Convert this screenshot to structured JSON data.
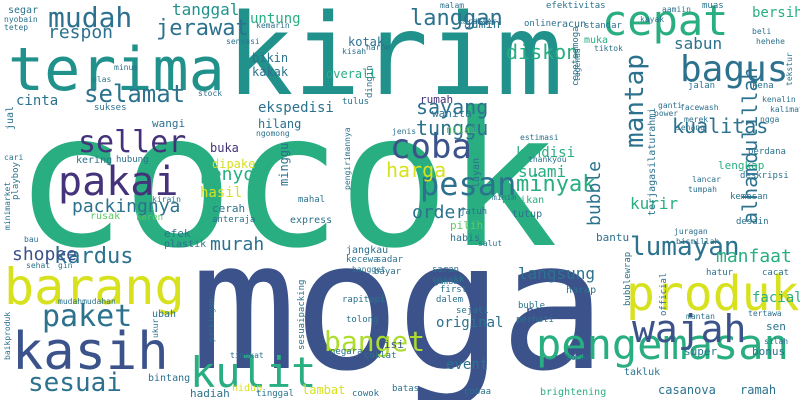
{
  "words": {
    "cocok": "cocok",
    "moga": "moga",
    "kirim": "kirim",
    "terima": "terima",
    "barang": "barang",
    "kasih": "kasih",
    "pengemasan": "pengemasan",
    "produk": "produk",
    "cepat": "cepat",
    "kulit": "kulit",
    "wajah": "wajah",
    "pakai": "pakai",
    "bagus": "bagus",
    "mudah": "mudah",
    "seller": "seller",
    "coba": "coba",
    "pesan": "pesan",
    "paket": "paket",
    "sesuai": "sesuai",
    "banget": "banget",
    "selamat": "selamat",
    "lumayan": "lumayan",
    "jerawat": "jerawat",
    "langgan": "langgan",
    "respon": "respon",
    "harga": "harga",
    "mantap": "mantap",
    "alhamdulillah": "alhamdulillah",
    "diskon": "diskon",
    "tanggal": "tanggal",
    "sayang": "sayang",
    "tunggu": "tunggu",
    "minyak": "minyak",
    "kualitas": "kualitas",
    "kardus": "kardus",
    "manfaat": "manfaat",
    "penyok": "penyok",
    "packingnya": "packingnya",
    "order": "order",
    "murah": "murah",
    "shopee": "shopee",
    "langsung": "langsung",
    "bubble": "bubble",
    "suami": "suami",
    "cinta": "cinta",
    "sabun": "sabun",
    "bersih": "bersih",
    "facial": "facial",
    "kondisi": "kondisi",
    "ekspedisi": "ekspedisi",
    "hasil": "hasil",
    "promo": "promo",
    "original": "original",
    "event": "event",
    "kurir": "kurir",
    "untung": "untung",
    "admin": "admin",
    "kotak": "kotak",
    "bikin": "bikin",
    "kakak": "kakak",
    "overall": "overall",
    "rumah": "rumah",
    "buka": "buka",
    "hilang": "hilang",
    "minggu": "minggu",
    "dipake": "dipake",
    "wanita": "wanita",
    "bantu": "bantu",
    "lengkap": "lengkap",
    "efek": "efek",
    "bubble_wrap": "bubblewrap",
    "super": "super",
    "bonus": "bonus",
    "lambat": "lambat",
    "hadiah": "hadiah",
    "bintang": "bintang",
    "hidup": "hidup",
    "casanova": "casanova",
    "ramah": "ramah",
    "takluk": "takluk",
    "sen": "sen",
    "harap": "harap",
    "isi": "isi",
    "perhati": "perhati",
    "buble": "buble",
    "ubah": "ubah",
    "muka": "muka",
    "terjaga": "terjagasilaturahmi",
    "wangi": "wangi",
    "kering": "kering",
    "hubung": "hubung",
    "cerah": "cerah",
    "anteraja": "anteraja",
    "rusak": "rusak",
    "keren": "keren",
    "plastik": "plastik",
    "express": "express",
    "jangkau": "jangkau",
    "kecewa": "kecewa",
    "pilih": "pilih",
    "habis": "habis",
    "belikan": "belikan",
    "tutup": "tutup",
    "jatuh": "jatuh",
    "layan": "layan",
    "nilai": "nilai",
    "segar": "segar",
    "awet": "awet",
    "muas": "muas",
    "kemasan": "kemasan",
    "desain": "desain",
    "sukses": "sukses",
    "jual": "jual",
    "negara": "negara",
    "coklat": "coklat",
    "tinggal": "tinggal",
    "cowok": "cowok",
    "batas": "batas",
    "cobaa": "cobaa",
    "brightening": "brightening",
    "tolong": "tolong",
    "rapitapi": "rapitapi",
    "dalem": "dalem",
    "sejati": "sejati",
    "first": "first",
    "cocokk": "cocokk",
    "sesuaipacking": "sesuaipacking",
    "bayar": "bayar",
    "sadar": "sadar",
    "saran": "saran",
    "gambar": "gambar",
    "cacat": "cacat",
    "hatur": "hatur",
    "bismillah": "bismillah",
    "juragan": "juragan",
    "perdana": "perdana",
    "deskripsi": "deskripsi",
    "senang": "senang",
    "merek": "merek",
    "ganti": "ganti",
    "power": "power",
    "jalan": "jalan",
    "facewash": "facewash",
    "kena": "kena",
    "thankyou": "thankyou",
    "estimasi": "estimasi",
    "jenis": "jenis",
    "ngomong": "ngomong",
    "mahal": "mahal",
    "kirain": "kirain",
    "stock": "stock",
    "dingin": "dingin",
    "tulus": "tulus",
    "harum": "harum",
    "kisah": "kisah",
    "kemarin": "kemarin",
    "karakter": "karakter",
    "malam": "malam",
    "racun": "racun",
    "standar": "standar",
    "efektivitas": "efektivitas",
    "online": "online",
    "cepetsemoga": "cepetsemoga",
    "tiktok": "tiktok",
    "hehehe": "hehehe",
    "beli": "beli",
    "kayak": "kayak",
    "aamiin": "aamiin",
    "tetep": "tetep",
    "sensasi": "sensasi",
    "nyobain": "nyobain",
    "minus": "minus",
    "ulas": "ulas",
    "pengiriman": "pengirimannya",
    "playboy": "playboy",
    "minimarket": "minimarket",
    "bau": "bau",
    "gin": "gin",
    "sehat": "sehat",
    "baikproduk": "baikproduk",
    "mudahmudahan": "mudahmudahan",
    "ukur": "ukur",
    "tingkat": "tingkat",
    "packingan": "packingan",
    "salut": "salut",
    "bubblewrap2": "bubblewrap",
    "official": "official",
    "mantan": "mantan",
    "tertawa": "tertawa",
    "silah": "silah",
    "bocor": "bocor",
    "legenda": "legenda",
    "lancar": "lancar",
    "tumpah": "tumpah",
    "minim": "minim",
    "cari": "cari",
    "kenalin": "kenalin",
    "kalimat": "kalimat",
    "tekstur": "tekstur",
    "ngga": "ngga",
    "bangget": "bangget"
  }
}
